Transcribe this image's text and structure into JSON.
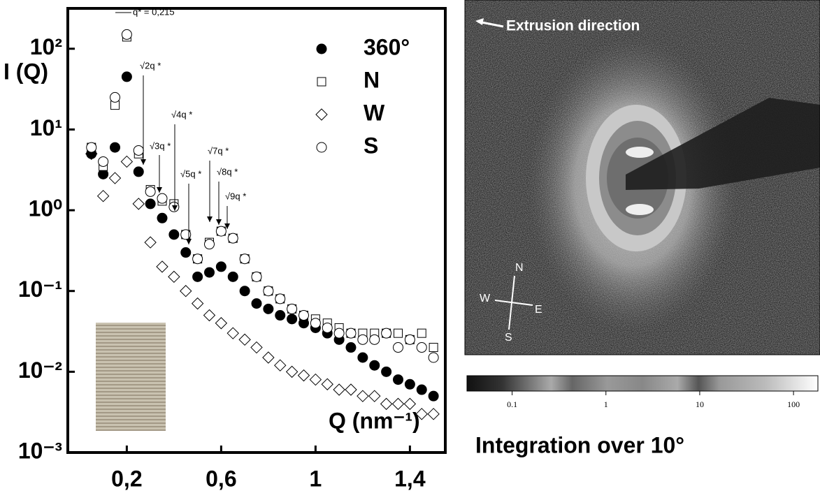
{
  "chart_data": {
    "type": "scatter",
    "x_label": "Q (nm⁻¹)",
    "y_label": "I (Q)",
    "log_y": true,
    "x": [
      0.05,
      0.1,
      0.15,
      0.2,
      0.25,
      0.3,
      0.35,
      0.4,
      0.45,
      0.5,
      0.55,
      0.6,
      0.65,
      0.7,
      0.75,
      0.8,
      0.85,
      0.9,
      0.95,
      1.0,
      1.05,
      1.1,
      1.15,
      1.2,
      1.25,
      1.3,
      1.35,
      1.4,
      1.45,
      1.5
    ],
    "series": [
      {
        "name": "360°",
        "marker": "filled-circle",
        "color": "#000000",
        "values": [
          5,
          2.8,
          6,
          45,
          3,
          1.2,
          0.8,
          0.5,
          0.3,
          0.15,
          0.17,
          0.2,
          0.15,
          0.1,
          0.07,
          0.06,
          0.05,
          0.045,
          0.04,
          0.035,
          0.03,
          0.025,
          0.02,
          0.015,
          0.012,
          0.01,
          0.008,
          0.007,
          0.006,
          0.005
        ]
      },
      {
        "name": "N",
        "marker": "square",
        "color": "#000000",
        "values": [
          6,
          3.5,
          20,
          140,
          5,
          1.8,
          1.3,
          1.2,
          0.5,
          0.25,
          0.4,
          0.55,
          0.45,
          0.25,
          0.15,
          0.1,
          0.08,
          0.06,
          0.05,
          0.045,
          0.04,
          0.035,
          0.03,
          0.03,
          0.03,
          0.03,
          0.03,
          0.025,
          0.03,
          0.02
        ]
      },
      {
        "name": "W",
        "marker": "diamond",
        "color": "#000000",
        "values": [
          5,
          1.5,
          2.5,
          4,
          1.2,
          0.4,
          0.2,
          0.15,
          0.1,
          0.07,
          0.05,
          0.04,
          0.03,
          0.025,
          0.02,
          0.015,
          0.012,
          0.01,
          0.009,
          0.008,
          0.007,
          0.006,
          0.006,
          0.005,
          0.005,
          0.004,
          0.004,
          0.004,
          0.003,
          0.003
        ]
      },
      {
        "name": "S",
        "marker": "circle",
        "color": "#000000",
        "values": [
          6,
          4,
          25,
          150,
          5.5,
          1.7,
          1.4,
          1.1,
          0.5,
          0.25,
          0.38,
          0.55,
          0.45,
          0.25,
          0.15,
          0.1,
          0.08,
          0.06,
          0.05,
          0.04,
          0.035,
          0.03,
          0.03,
          0.025,
          0.025,
          0.03,
          0.02,
          0.025,
          0.02,
          0.015
        ]
      }
    ],
    "xlim": [
      -0.05,
      1.55
    ],
    "xticks": [
      {
        "value": 0.2,
        "label": "0,2"
      },
      {
        "value": 0.6,
        "label": "0,6"
      },
      1,
      {
        "value": 1.4,
        "label": "1,4"
      }
    ],
    "ylim": [
      0.001,
      316
    ],
    "yticks": [
      {
        "value": 0.001,
        "label": "10⁻³"
      },
      {
        "value": 0.01,
        "label": "10⁻²"
      },
      {
        "value": 0.1,
        "label": "10⁻¹"
      },
      {
        "value": 1,
        "label": "10⁰"
      },
      {
        "value": 10,
        "label": "10¹"
      },
      {
        "value": 100,
        "label": "10²"
      }
    ],
    "annotations": [
      "q* = 0,215",
      "√2q *",
      "√3q *",
      "√4q *",
      "√5q *",
      "√7q *",
      "√8q *",
      "√9q *"
    ]
  },
  "image": {
    "annotation": "Extrusion direction",
    "compass": [
      "N",
      "W",
      "E",
      "S"
    ],
    "colorbar": {
      "lim": [
        0.033,
        182
      ],
      "ticks": [
        0.1,
        1,
        10,
        100
      ]
    },
    "caption": "Integration over 10°"
  }
}
